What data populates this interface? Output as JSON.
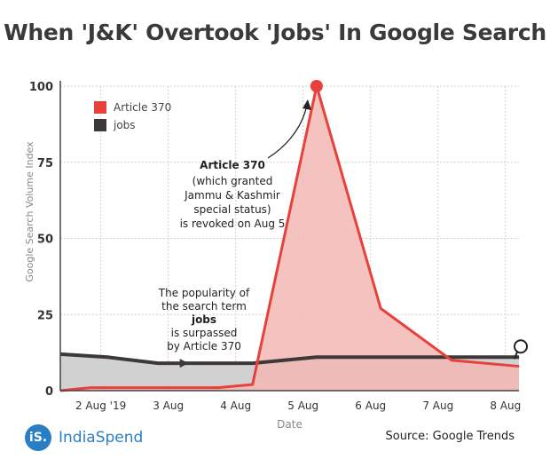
{
  "chart_data": {
    "type": "area",
    "title": "When 'J&K' Overtook 'Jobs' In Google Search",
    "xlabel": "Date",
    "ylabel": "Google Search Volume Index",
    "ylim": [
      0,
      100
    ],
    "yticks": [
      0,
      25,
      50,
      75,
      100
    ],
    "xticks": [
      "2 Aug '19",
      "3 Aug",
      "4 Aug",
      "5 Aug",
      "6 Aug",
      "7 Aug",
      "8 Aug"
    ],
    "x_range_days": [
      1.4,
      8.2
    ],
    "grid": true,
    "legend_position": "top-left",
    "series": [
      {
        "name": "Article 370",
        "color": "#e8403a",
        "fill": "#f2b8b4",
        "points": [
          [
            1.4,
            0
          ],
          [
            1.85,
            1
          ],
          [
            2.85,
            1
          ],
          [
            3.75,
            1
          ],
          [
            4.25,
            2
          ],
          [
            5.2,
            100
          ],
          [
            6.15,
            27
          ],
          [
            7.2,
            10
          ],
          [
            8.2,
            8
          ]
        ]
      },
      {
        "name": "jobs",
        "color": "#3e3838",
        "fill": "#cccccc",
        "points": [
          [
            1.4,
            12
          ],
          [
            2.1,
            11
          ],
          [
            2.85,
            9
          ],
          [
            3.75,
            9
          ],
          [
            4.25,
            9
          ],
          [
            5.2,
            11
          ],
          [
            6.15,
            11
          ],
          [
            7.2,
            11
          ],
          [
            8.2,
            11
          ]
        ]
      }
    ],
    "annotations": [
      {
        "id": "article",
        "bold": "Article 370",
        "lines": [
          "(which granted",
          "Jammu & Kashmir",
          "special status)",
          "is revoked on Aug 5"
        ]
      },
      {
        "id": "jobs",
        "lines_before": [
          "The popularity of",
          "the search term"
        ],
        "bold": "jobs",
        "lines_after": [
          "is surpassed",
          "by Article 370"
        ]
      }
    ]
  },
  "footer": {
    "logo_mark": "iS.",
    "logo_text": "IndiaSpend",
    "source": "Source: Google Trends"
  }
}
